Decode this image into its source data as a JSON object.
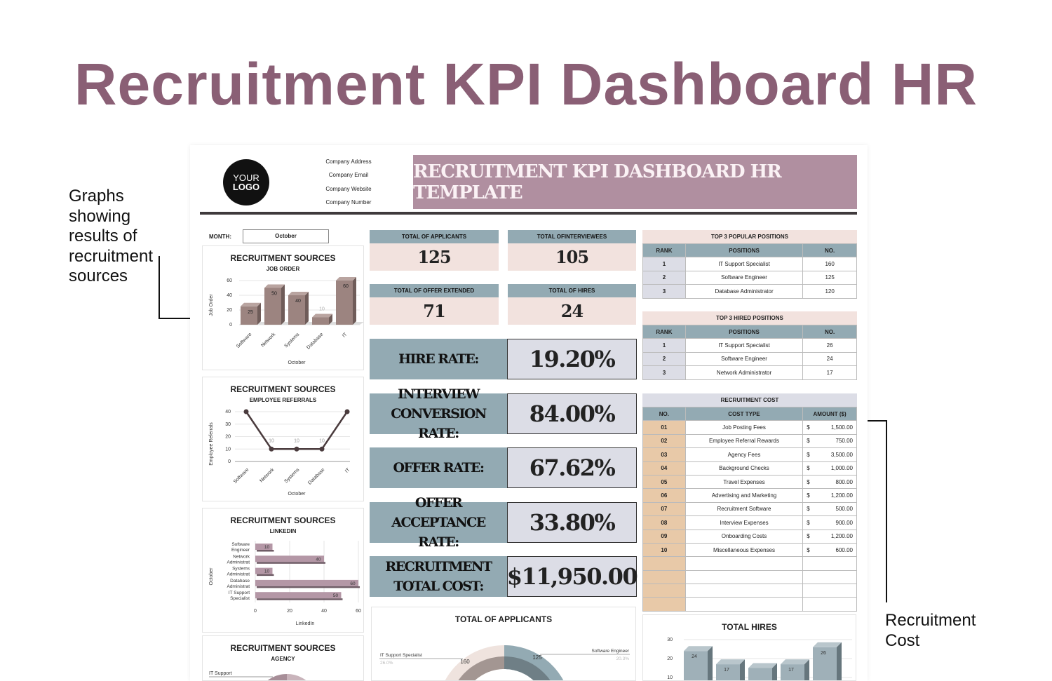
{
  "title": "Recruitment KPI Dashboard HR",
  "annotations": {
    "left": "Graphs showing results of recruitment sources",
    "right": "Recruitment Cost"
  },
  "header": {
    "logo": [
      "YOUR",
      "LOGO"
    ],
    "company": [
      "Company Address",
      "Company Email",
      "Company Website",
      "Company Number"
    ],
    "banner": "RECRUITMENT KPI DASHBOARD HR TEMPLATE"
  },
  "month": {
    "label": "MONTH:",
    "value": "October"
  },
  "kpis": [
    {
      "label": "TOTAL OF APPLICANTS",
      "value": "125"
    },
    {
      "label": "TOTAL OFINTERVIEWEES",
      "value": "105"
    },
    {
      "label": "TOTAL OF OFFER EXTENDED",
      "value": "71"
    },
    {
      "label": "TOTAL OF HIRES",
      "value": "24"
    }
  ],
  "rates": [
    {
      "label": "HIRE RATE:",
      "value": "19.20%"
    },
    {
      "label": "INTERVIEW CONVERSION RATE:",
      "value": "84.00%"
    },
    {
      "label": "OFFER RATE:",
      "value": "67.62%"
    },
    {
      "label": "OFFER ACCEPTANCE RATE:",
      "value": "33.80%"
    },
    {
      "label": "RECRUITMENT TOTAL COST:",
      "value": "$11,950.00"
    }
  ],
  "popular": {
    "title": "TOP 3 POPULAR POSITIONS",
    "headers": [
      "RANK",
      "POSITIONS",
      "NO."
    ],
    "rows": [
      [
        "1",
        "IT Support Specialist",
        "160"
      ],
      [
        "2",
        "Software Engineer",
        "125"
      ],
      [
        "3",
        "Database Administrator",
        "120"
      ]
    ]
  },
  "hired": {
    "title": "TOP 3 HIRED POSITIONS",
    "headers": [
      "RANK",
      "POSITIONS",
      "NO."
    ],
    "rows": [
      [
        "1",
        "IT Support Specialist",
        "26"
      ],
      [
        "2",
        "Software Engineer",
        "24"
      ],
      [
        "3",
        "Network Administrator",
        "17"
      ]
    ]
  },
  "cost": {
    "title": "RECRUITMENT COST",
    "headers": [
      "NO.",
      "COST TYPE",
      "AMOUNT ($)"
    ],
    "currency": "$",
    "rows": [
      [
        "01",
        "Job Posting Fees",
        "1,500.00"
      ],
      [
        "02",
        "Employee Referral Rewards",
        "750.00"
      ],
      [
        "03",
        "Agency Fees",
        "3,500.00"
      ],
      [
        "04",
        "Background Checks",
        "1,000.00"
      ],
      [
        "05",
        "Travel Expenses",
        "800.00"
      ],
      [
        "06",
        "Advertising and Marketing",
        "1,200.00"
      ],
      [
        "07",
        "Recruitment Software",
        "500.00"
      ],
      [
        "08",
        "Interview Expenses",
        "900.00"
      ],
      [
        "09",
        "Onboarding Costs",
        "1,200.00"
      ],
      [
        "10",
        "Miscellaneous Expenses",
        "600.00"
      ]
    ],
    "empty_rows": 4
  },
  "chart_data": [
    {
      "id": "job",
      "type": "bar",
      "title": "RECRUITMENT SOURCES",
      "subtitle": "JOB ORDER",
      "categories": [
        "Software",
        "Network",
        "Systems",
        "Database",
        "IT"
      ],
      "values": [
        25,
        50,
        40,
        10,
        60
      ],
      "ylabel": "Job Order",
      "xlabel": "October",
      "ylim": [
        0,
        60
      ],
      "yticks": [
        0,
        20,
        40,
        60
      ],
      "color": "#9c8480"
    },
    {
      "id": "ref",
      "type": "line",
      "title": "RECRUITMENT SOURCES",
      "subtitle": "EMPLOYEE REFERRALS",
      "categories": [
        "Software",
        "Network",
        "Systems",
        "Database",
        "IT"
      ],
      "values": [
        40,
        10,
        10,
        10,
        40
      ],
      "labels": [
        "",
        "10",
        "10",
        "10",
        ""
      ],
      "ylabel": "Employee Referrals",
      "xlabel": "October",
      "ylim": [
        0,
        40
      ],
      "yticks": [
        0,
        10,
        20,
        30,
        40
      ],
      "color": "#4a3b3d"
    },
    {
      "id": "li",
      "type": "bar",
      "orientation": "horizontal",
      "title": "RECRUITMENT SOURCES",
      "subtitle": "LINKEDIN",
      "categories": [
        [
          "Software",
          "Engineer"
        ],
        [
          "Network",
          "Administrat"
        ],
        [
          "Systems",
          "Administrat"
        ],
        [
          "Database",
          "Administrat"
        ],
        [
          "IT Support",
          "Specialist"
        ]
      ],
      "values": [
        10,
        40,
        10,
        60,
        50
      ],
      "ylabel": "October",
      "xlabel": "LinkedIn",
      "xlim": [
        0,
        60
      ],
      "xticks": [
        0,
        20,
        40,
        60
      ],
      "color": "#b497a6"
    },
    {
      "id": "agency",
      "type": "pie",
      "title": "RECRUITMENT SOURCES",
      "subtitle": "AGENCY",
      "labels": [
        "IT Support"
      ]
    },
    {
      "id": "apps",
      "type": "pie",
      "title": "TOTAL OF APPLICANTS",
      "slices": [
        {
          "label": "IT Support Specialist",
          "value": 160,
          "pct": "26.0%",
          "color": "#efe3de"
        },
        {
          "label": "Software Engineer",
          "value": 125,
          "pct": "20.3%",
          "color": "#93aab3"
        }
      ]
    },
    {
      "id": "hires",
      "type": "bar",
      "title": "TOTAL HIRES",
      "values": [
        24,
        17,
        15,
        17,
        26
      ],
      "labels": [
        "24",
        "17",
        "",
        "17",
        "26"
      ],
      "ylim": [
        0,
        30
      ],
      "yticks": [
        10,
        20,
        30
      ],
      "color": "#9fb0b8"
    }
  ]
}
